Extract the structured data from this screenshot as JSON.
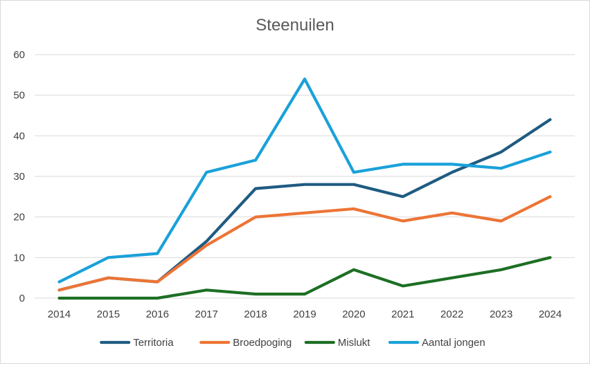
{
  "chart_data": {
    "type": "line",
    "title": "Steenuilen",
    "xlabel": "",
    "ylabel": "",
    "categories": [
      "2014",
      "2015",
      "2016",
      "2017",
      "2018",
      "2019",
      "2020",
      "2021",
      "2022",
      "2023",
      "2024"
    ],
    "ylim": [
      0,
      60
    ],
    "yticks": [
      "0",
      "10",
      "20",
      "30",
      "40",
      "50",
      "60"
    ],
    "grid": true,
    "legend": "bottom",
    "series": [
      {
        "name": "Territoria",
        "color": "#1f5b82",
        "values": [
          2,
          5,
          4,
          14,
          27,
          28,
          28,
          25,
          31,
          36,
          44
        ]
      },
      {
        "name": "Broedpoging",
        "color": "#ed7435",
        "values": [
          2,
          5,
          4,
          13,
          20,
          21,
          22,
          19,
          21,
          19,
          25
        ]
      },
      {
        "name": "Mislukt",
        "color": "#1d6f24",
        "values": [
          0,
          0,
          0,
          2,
          1,
          1,
          7,
          3,
          5,
          7,
          10
        ]
      },
      {
        "name": "Aantal jongen",
        "color": "#1aa1d9",
        "values": [
          4,
          10,
          11,
          31,
          34,
          54,
          31,
          33,
          33,
          32,
          36
        ]
      }
    ]
  }
}
